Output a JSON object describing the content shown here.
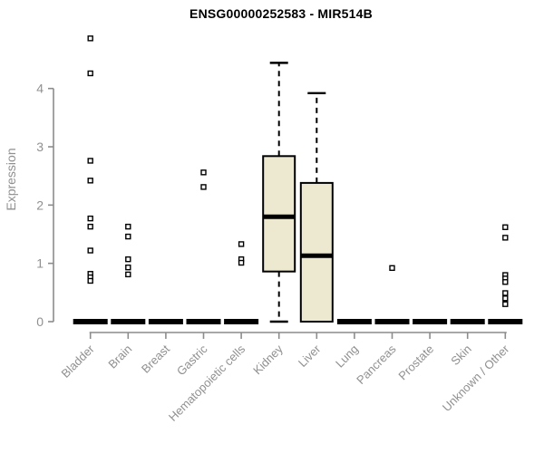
{
  "chart_data": {
    "type": "boxplot",
    "title": "ENSG00000252583 - MIR514B",
    "ylabel": "Expression",
    "xlabel": "",
    "ylim": [
      0,
      4.95
    ],
    "yticks": [
      0,
      1,
      2,
      3,
      4
    ],
    "grid": false,
    "legend": null,
    "categories": [
      "Bladder",
      "Brain",
      "Breast",
      "Gastric",
      "Hematopoietic cells",
      "Kidney",
      "Liver",
      "Lung",
      "Pancreas",
      "Prostate",
      "Skin",
      "Unknown / Other"
    ],
    "boxes": [
      {
        "label": "Bladder",
        "q1": 0,
        "median": 0,
        "q3": 0,
        "whisker_low": 0,
        "whisker_high": 0,
        "outliers": [
          4.86,
          4.26,
          2.76,
          2.42,
          1.77,
          1.63,
          1.22,
          0.82,
          0.76,
          0.7
        ]
      },
      {
        "label": "Brain",
        "q1": 0,
        "median": 0,
        "q3": 0,
        "whisker_low": 0,
        "whisker_high": 0,
        "outliers": [
          1.63,
          1.46,
          1.07,
          0.93,
          0.81
        ]
      },
      {
        "label": "Breast",
        "q1": 0,
        "median": 0,
        "q3": 0,
        "whisker_low": 0,
        "whisker_high": 0,
        "outliers": []
      },
      {
        "label": "Gastric",
        "q1": 0,
        "median": 0,
        "q3": 0,
        "whisker_low": 0,
        "whisker_high": 0,
        "outliers": [
          2.56,
          2.31
        ]
      },
      {
        "label": "Hematopoietic cells",
        "q1": 0,
        "median": 0,
        "q3": 0,
        "whisker_low": 0,
        "whisker_high": 0,
        "outliers": [
          1.33,
          1.07,
          1.01
        ]
      },
      {
        "label": "Kidney",
        "q1": 0.86,
        "median": 1.8,
        "q3": 2.84,
        "whisker_low": 0,
        "whisker_high": 4.44,
        "outliers": []
      },
      {
        "label": "Liver",
        "q1": 0,
        "median": 1.13,
        "q3": 2.38,
        "whisker_low": 0,
        "whisker_high": 3.92,
        "outliers": []
      },
      {
        "label": "Lung",
        "q1": 0,
        "median": 0,
        "q3": 0,
        "whisker_low": 0,
        "whisker_high": 0,
        "outliers": []
      },
      {
        "label": "Pancreas",
        "q1": 0,
        "median": 0,
        "q3": 0,
        "whisker_low": 0,
        "whisker_high": 0,
        "outliers": [
          0.92
        ]
      },
      {
        "label": "Prostate",
        "q1": 0,
        "median": 0,
        "q3": 0,
        "whisker_low": 0,
        "whisker_high": 0,
        "outliers": []
      },
      {
        "label": "Skin",
        "q1": 0,
        "median": 0,
        "q3": 0,
        "whisker_low": 0,
        "whisker_high": 0,
        "outliers": []
      },
      {
        "label": "Unknown / Other",
        "q1": 0,
        "median": 0,
        "q3": 0,
        "whisker_low": 0,
        "whisker_high": 0,
        "outliers": [
          1.62,
          1.44,
          0.8,
          0.74,
          0.68,
          0.49,
          0.4,
          0.3
        ]
      }
    ],
    "colors": {
      "box_fill": "#EDE8D0",
      "box_border": "#000000",
      "median": "#000000",
      "outlier": "#000000",
      "axis": "#8C8C8C",
      "tick_label": "#909090",
      "title": "#000000",
      "background": "#FFFFFF"
    }
  }
}
